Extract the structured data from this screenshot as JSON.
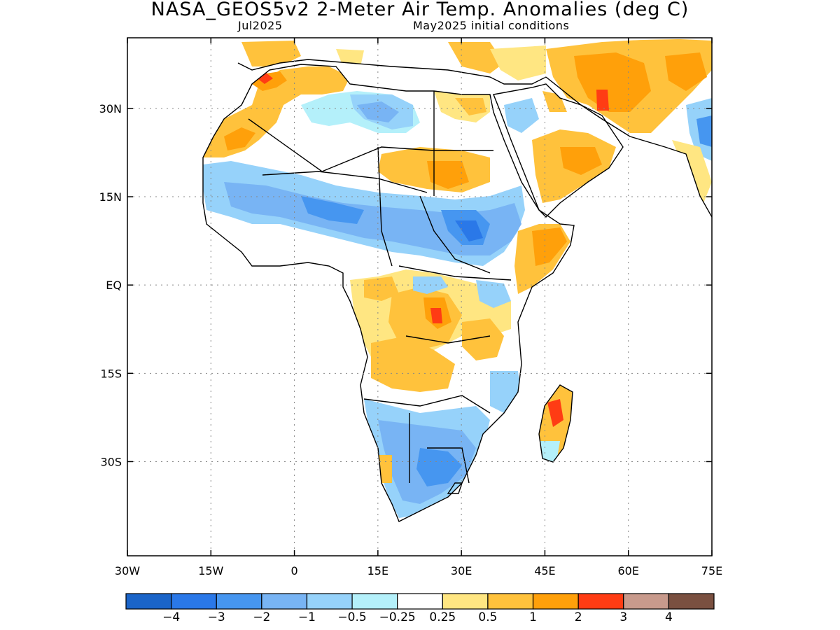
{
  "header": {
    "title": "NASA_GEOS5v2 2-Meter Air Temp. Anomalies (deg C)",
    "valid_month": "Jul2025",
    "init": "May2025 initial conditions"
  },
  "map": {
    "lon_range": [
      -30,
      75
    ],
    "lat_range": [
      -46,
      42
    ],
    "x_ticks": [
      "30W",
      "15W",
      "0",
      "15E",
      "30E",
      "45E",
      "60E",
      "75E"
    ],
    "x_tick_values": [
      -30,
      -15,
      0,
      15,
      30,
      45,
      60,
      75
    ],
    "y_ticks": [
      "30N",
      "15N",
      "EQ",
      "15S",
      "30S"
    ],
    "y_tick_values": [
      30,
      15,
      0,
      -15,
      -30
    ]
  },
  "colorbar": {
    "colors": [
      "#1a64c8",
      "#2a78e8",
      "#4696f0",
      "#78b4f4",
      "#96d2fa",
      "#b4f0fa",
      "#ffffff",
      "#ffe682",
      "#ffc23c",
      "#ffa00a",
      "#ff3c14",
      "#c89a8c",
      "#7a5040"
    ],
    "labels": [
      "−4",
      "−3",
      "−2",
      "−1",
      "−0.5",
      "−0.25",
      "0.25",
      "0.5",
      "1",
      "2",
      "3",
      "4"
    ]
  }
}
